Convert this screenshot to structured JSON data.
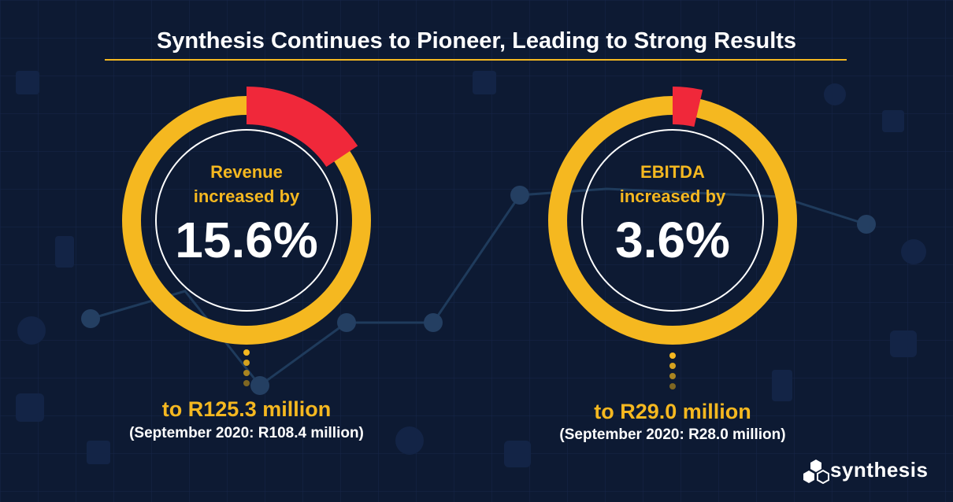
{
  "header": {
    "title": "Synthesis Continues to Pioneer, Leading to Strong Results"
  },
  "metrics": [
    {
      "label_line1": "Revenue",
      "label_line2": "increased by",
      "value": "15.6%",
      "percent": 15.6,
      "to_text": "to R125.3 million",
      "previous_text": "(September 2020: R108.4 million)"
    },
    {
      "label_line1": "EBITDA",
      "label_line2": "increased by",
      "value": "3.6%",
      "percent": 3.6,
      "to_text": "to R29.0 million",
      "previous_text": "(September 2020: R28.0 million)"
    }
  ],
  "brand": {
    "name": "synthesis",
    "logo_icon": "hexagon-cluster-icon"
  },
  "colors": {
    "background": "#0d1a33",
    "ring": "#f5b820",
    "highlight": "#f0283a",
    "text": "#ffffff"
  }
}
